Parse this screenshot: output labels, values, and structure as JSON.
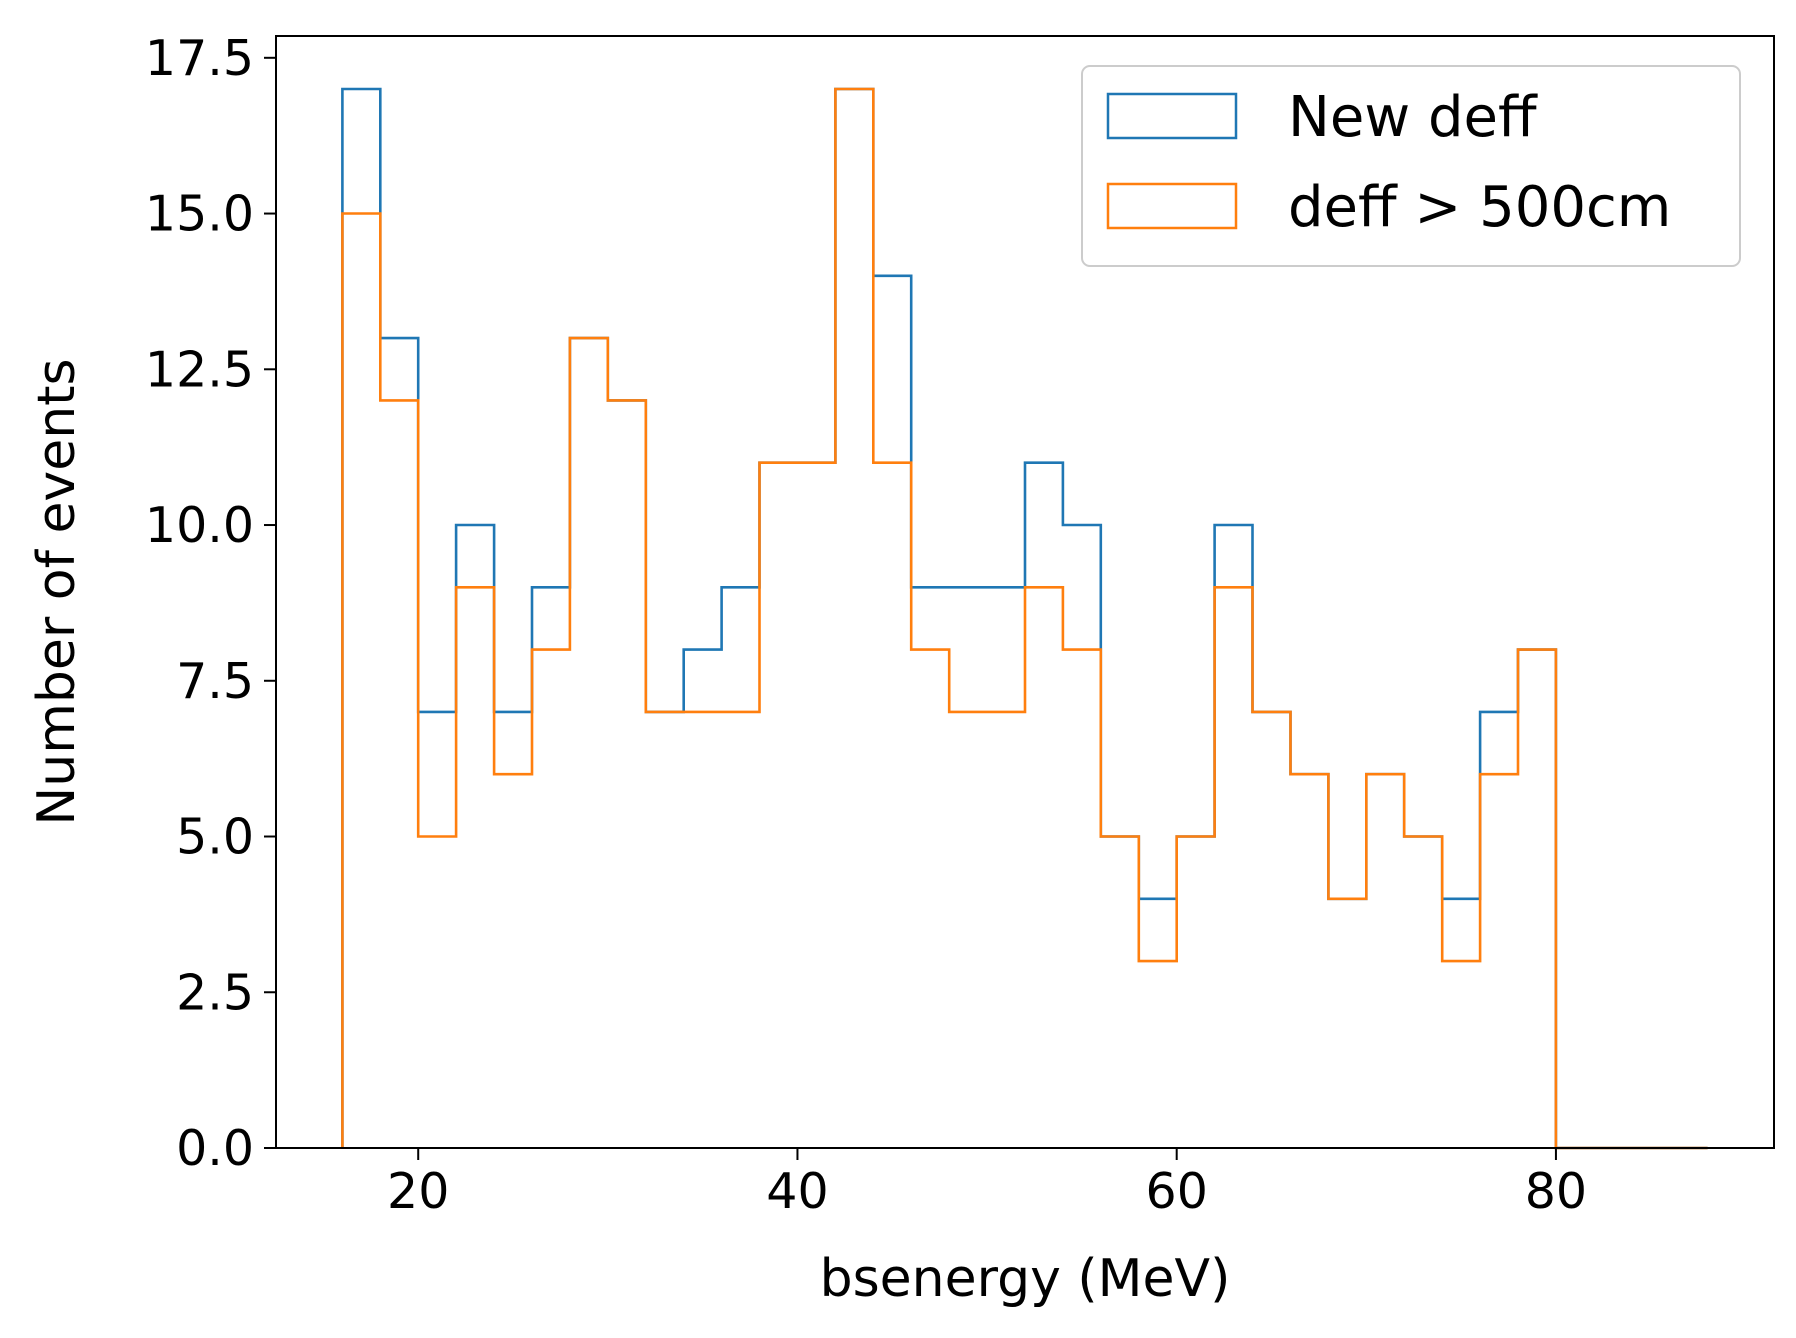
{
  "chart_data": {
    "type": "histogram",
    "xlabel": "bsenergy (MeV)",
    "ylabel": "Number of events",
    "xlim": [
      12.5,
      91.5
    ],
    "ylim": [
      0,
      17.85
    ],
    "xticks": [
      20,
      40,
      60,
      80
    ],
    "yticks": [
      0.0,
      2.5,
      5.0,
      7.5,
      10.0,
      12.5,
      15.0,
      17.5
    ],
    "xtick_labels": [
      "20",
      "40",
      "60",
      "80"
    ],
    "ytick_labels": [
      "0.0",
      "2.5",
      "5.0",
      "7.5",
      "10.0",
      "12.5",
      "15.0",
      "17.5"
    ],
    "grid": false,
    "legend_position": "top-right",
    "bin_edges": [
      16,
      18,
      20,
      22,
      24,
      26,
      28,
      30,
      32,
      34,
      36,
      38,
      40,
      42,
      44,
      46,
      48,
      50,
      52,
      54,
      56,
      58,
      60,
      62,
      64,
      66,
      68,
      70,
      72,
      74,
      76,
      78,
      80,
      82,
      84,
      86,
      88
    ],
    "series": [
      {
        "name": "New deff",
        "color": "#1f77b4",
        "values": [
          17,
          13,
          7,
          10,
          7,
          9,
          13,
          12,
          7,
          8,
          9,
          11,
          11,
          17,
          14,
          9,
          9,
          9,
          11,
          10,
          5,
          4,
          5,
          10,
          7,
          6,
          4,
          6,
          5,
          4,
          7,
          8,
          0,
          0,
          0,
          0
        ]
      },
      {
        "name": "deff > 500cm",
        "color": "#ff7f0e",
        "values": [
          15,
          12,
          5,
          9,
          6,
          8,
          13,
          12,
          7,
          7,
          7,
          11,
          11,
          17,
          11,
          8,
          7,
          7,
          9,
          8,
          5,
          3,
          5,
          9,
          7,
          6,
          4,
          6,
          5,
          3,
          6,
          8,
          0,
          0,
          0,
          0
        ]
      }
    ]
  }
}
